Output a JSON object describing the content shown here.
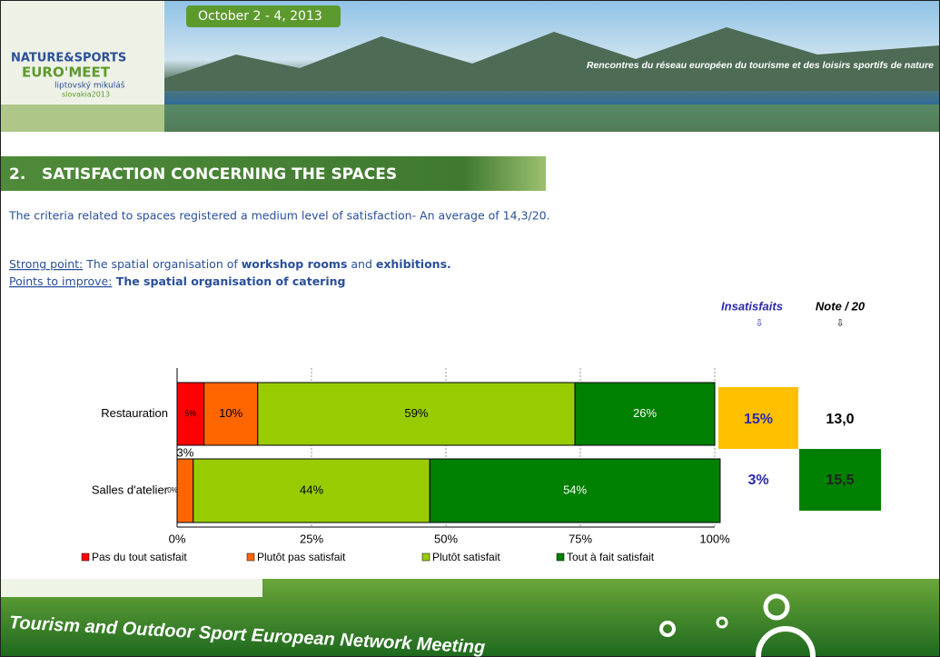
{
  "header": {
    "date": "October 2 - 4, 2013",
    "logo": [
      "NATURE&SPORTS",
      "EURO'MEET",
      "liptovský mikuláš",
      "slovakia2013"
    ],
    "tagline": "Rencontres du réseau européen du tourisme et des loisirs sportifs de nature"
  },
  "section": {
    "title": "2.   SATISFACTION CONCERNING THE SPACES",
    "intro": "The criteria related to spaces registered a medium level of satisfaction- An average of 14,3/20.",
    "strong_label": "Strong point:",
    "strong_text": [
      " The spatial organisation of ",
      "workshop rooms",
      " and ",
      "exhibitions."
    ],
    "improve_label": "Points to improve:",
    "improve_text": " The spatial organisation of catering"
  },
  "side_table": {
    "headers": [
      "Insatisfaits",
      "Note / 20"
    ],
    "rows": [
      [
        "15%",
        "13,0"
      ],
      [
        "3%",
        "15,5"
      ]
    ]
  },
  "chart_data": {
    "type": "stacked_barh",
    "categories": [
      "Restauration",
      "Salles d'atelier"
    ],
    "series": [
      {
        "name": "Pas du tout satisfait",
        "color": "#ff0000",
        "values": [
          5,
          0
        ],
        "value_labels": [
          "5%",
          "0%"
        ]
      },
      {
        "name": "Plutôt pas satisfait",
        "color": "#ff6600",
        "values": [
          10,
          3
        ],
        "value_labels": [
          "10%",
          "3%"
        ]
      },
      {
        "name": "Plutôt satisfait",
        "color": "#99cc00",
        "values": [
          59,
          44
        ],
        "value_labels": [
          "59%",
          "44%"
        ]
      },
      {
        "name": "Tout à fait satisfait",
        "color": "#008000",
        "values": [
          26,
          54
        ],
        "value_labels": [
          "26%",
          "54%"
        ]
      }
    ],
    "xlim": [
      0,
      100
    ],
    "xticks": [
      {
        "value": 0,
        "label": "0%"
      },
      {
        "value": 25,
        "label": "25%"
      },
      {
        "value": 50,
        "label": "50%"
      },
      {
        "value": 75,
        "label": "75%"
      },
      {
        "value": 100,
        "label": "100%"
      }
    ],
    "grid": true,
    "legend": "bottom"
  },
  "footer": {
    "text": "Tourism and Outdoor Sport European Network Meeting"
  }
}
